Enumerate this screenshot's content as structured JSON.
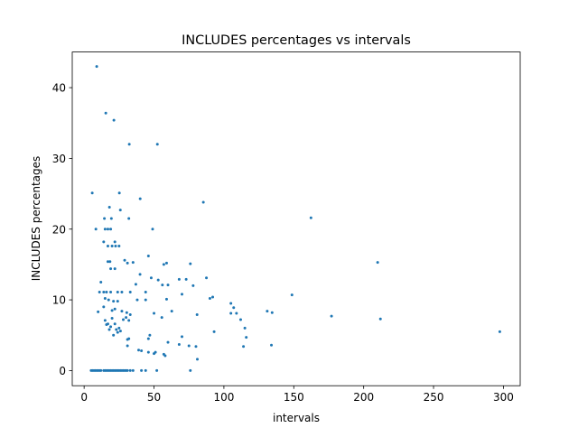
{
  "chart_data": {
    "type": "scatter",
    "title": "INCLUDES percentages vs intervals",
    "x_label": "intervals",
    "y_label": "INCLUDES percentages",
    "color": "#1f77b4",
    "xlim": [
      -8.5,
      312
    ],
    "ylim": [
      -2.14,
      45.04
    ],
    "xticks": [
      0,
      50,
      100,
      150,
      200,
      250,
      300
    ],
    "yticks": [
      0,
      10,
      20,
      30,
      40
    ],
    "x": [
      5,
      6,
      7,
      8,
      9,
      10,
      11,
      12,
      14,
      15,
      16,
      17,
      18,
      19,
      20,
      21,
      22,
      23,
      24,
      25,
      26,
      27,
      28,
      29,
      30,
      31,
      33,
      35,
      41,
      44,
      52,
      76,
      9,
      15.5,
      21.3,
      32.3,
      52.4,
      5.8,
      25.2,
      40.1,
      85.3,
      162.3,
      25.9,
      18.1,
      8.4,
      15,
      17,
      19,
      49,
      14.5,
      19.5,
      32,
      14,
      22,
      17,
      20,
      22.5,
      25,
      17,
      18.5,
      29,
      31,
      35,
      46,
      57,
      59,
      76,
      210,
      19,
      22,
      40,
      48,
      53,
      56,
      68,
      73,
      78,
      87.5,
      12,
      37,
      60,
      11,
      14,
      16,
      19,
      24,
      27,
      33,
      44,
      70,
      148.7,
      38,
      44,
      59,
      90,
      92,
      15,
      17.5,
      21,
      24,
      105,
      107,
      109,
      112,
      115,
      116,
      14,
      22,
      27,
      30.5,
      50,
      10,
      20,
      131,
      134.5,
      177,
      212,
      297.4,
      93,
      62.7,
      80.8,
      55.6,
      105,
      15,
      17,
      19,
      20,
      22,
      23,
      24,
      26,
      28,
      30,
      32,
      33,
      18,
      21,
      16,
      25,
      31,
      32,
      46,
      47,
      31,
      39,
      41,
      68,
      75,
      134,
      114,
      46,
      50,
      51,
      57,
      58,
      60,
      70,
      80,
      81
    ],
    "y": [
      0,
      0,
      0,
      0,
      0,
      0,
      0,
      0,
      0,
      0,
      0,
      0,
      0,
      0,
      0,
      0,
      0,
      0,
      0,
      0,
      0,
      0,
      0,
      0,
      0,
      0,
      0,
      0,
      0,
      0,
      0,
      0,
      43,
      36.4,
      35.4,
      32,
      32,
      25.1,
      25.1,
      24.3,
      23.8,
      21.6,
      22.7,
      23.1,
      20,
      20,
      20,
      20,
      20,
      21.5,
      21.5,
      21.5,
      18.2,
      18.2,
      17.6,
      17.6,
      17.6,
      17.6,
      15.4,
      15.4,
      15.6,
      15.2,
      15.3,
      16.2,
      15,
      15.2,
      15.1,
      15.3,
      14.4,
      14.4,
      13.6,
      13.1,
      12.8,
      12.1,
      12.9,
      12.9,
      12,
      13.1,
      12.5,
      12.2,
      12.1,
      11.1,
      11.1,
      11.1,
      11.1,
      11.1,
      11.1,
      11.1,
      11.1,
      10.8,
      10.7,
      10,
      10,
      10.1,
      10.2,
      10.4,
      10.2,
      10,
      9.8,
      9.8,
      9.5,
      8.9,
      8.1,
      7.2,
      6,
      4.7,
      9,
      8.7,
      8.4,
      8.2,
      8.1,
      8.3,
      8.5,
      8.4,
      8.2,
      7.7,
      7.3,
      5.5,
      5.5,
      8.4,
      7.9,
      7.5,
      8.1,
      7.1,
      6.6,
      6.2,
      7.4,
      6.6,
      5.8,
      5.4,
      5.6,
      7.2,
      7.5,
      7.1,
      7.9,
      5.8,
      5,
      6.5,
      6,
      4.4,
      4.5,
      4.5,
      5,
      3.5,
      2.9,
      2.8,
      3.7,
      3.5,
      3.6,
      3.4,
      2.6,
      2.4,
      2.6,
      2.3,
      2.1,
      4,
      4.8,
      3.4,
      1.6
    ]
  }
}
